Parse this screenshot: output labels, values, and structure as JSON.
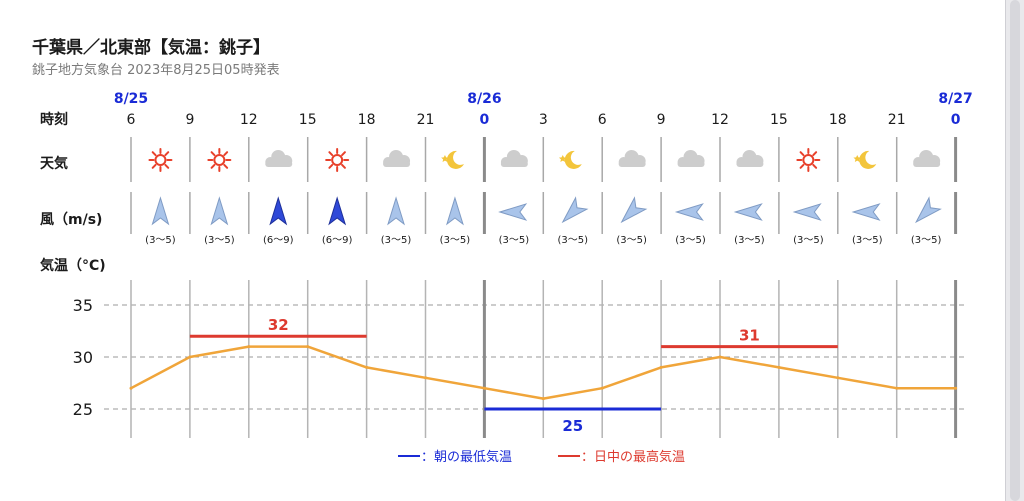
{
  "header": {
    "title": "千葉県／北東部【気温：銚子】",
    "subtitle": "銚子地方気象台 2023年8月25日05時発表"
  },
  "row_labels": {
    "time": "時刻",
    "weather": "天気",
    "wind": "風（m/s)",
    "temp": "気温（°C)"
  },
  "date_labels": [
    {
      "label": "8/25",
      "at": 0
    },
    {
      "label": "8/26",
      "at": 6
    },
    {
      "label": "8/27",
      "at": 14
    }
  ],
  "hours": [
    "6",
    "9",
    "12",
    "15",
    "18",
    "21",
    "0",
    "3",
    "6",
    "9",
    "12",
    "15",
    "18",
    "21",
    "0"
  ],
  "weather_icons": [
    "sun-icon",
    "sun-icon",
    "cloud-icon",
    "sun-icon",
    "cloud-icon",
    "moon-icon",
    "cloud-icon",
    "moon-icon",
    "cloud-icon",
    "cloud-icon",
    "cloud-icon",
    "sun-icon",
    "moon-icon",
    "cloud-icon"
  ],
  "wind": {
    "directions": [
      "S",
      "S",
      "S",
      "S",
      "S",
      "S",
      "E",
      "NE",
      "NE",
      "E",
      "E",
      "E",
      "E",
      "NE"
    ],
    "speeds": [
      "(3〜5)",
      "(3〜5)",
      "(6〜9)",
      "(6〜9)",
      "(3〜5)",
      "(3〜5)",
      "(3〜5)",
      "(3〜5)",
      "(3〜5)",
      "(3〜5)",
      "(3〜5)",
      "(3〜5)",
      "(3〜5)",
      "(3〜5)"
    ],
    "strong": [
      false,
      false,
      true,
      true,
      false,
      false,
      false,
      false,
      false,
      false,
      false,
      false,
      false,
      false
    ]
  },
  "legend": {
    "min_label": "：朝の最低気温",
    "max_label": "：日中の最高気温"
  },
  "colors": {
    "temp_line": "#f0a53a",
    "max": "#dd3a2f",
    "min": "#1a2bd6",
    "date": "#1a2bd6",
    "wind_light": "#a9c4ea",
    "wind_strong": "#2f49d8"
  },
  "chart_data": {
    "type": "line",
    "x": [
      "8/25 6",
      "9",
      "12",
      "15",
      "18",
      "21",
      "8/26 0",
      "3",
      "6",
      "9",
      "12",
      "15",
      "18",
      "21",
      "8/27 0"
    ],
    "series": [
      {
        "values": [
          27,
          30,
          31,
          31,
          29,
          28,
          27,
          26,
          27,
          29,
          30,
          29,
          28,
          27,
          27
        ]
      }
    ],
    "yticks": [
      25,
      30,
      35
    ],
    "ylim": [
      22,
      38
    ],
    "grid": true,
    "annotations": [
      {
        "label": "32",
        "value": 32,
        "kind": "max",
        "from": 1,
        "to": 4
      },
      {
        "label": "25",
        "value": 25,
        "kind": "min",
        "from": 6,
        "to": 9
      },
      {
        "label": "31",
        "value": 31,
        "kind": "max",
        "from": 9,
        "to": 12
      }
    ]
  }
}
